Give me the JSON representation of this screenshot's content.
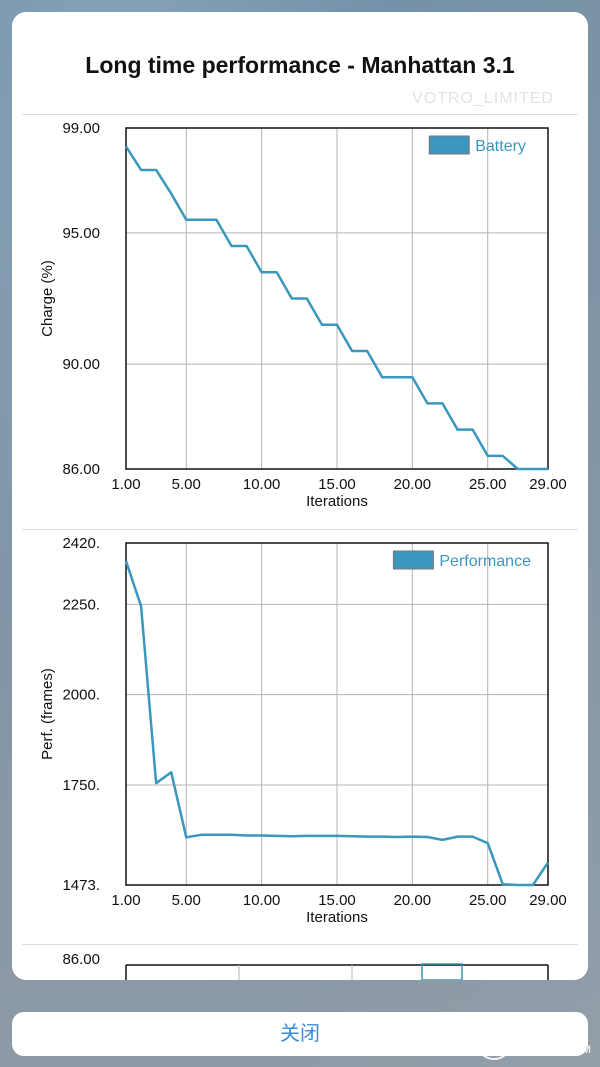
{
  "dialog": {
    "title": "Long time performance - Manhattan 3.1",
    "ghost_text": "VOTRO_LIMITED",
    "cancel_label": "关闭"
  },
  "watermark": {
    "logo": "值",
    "line1": "什么值得买",
    "line2": "SMZDM.COM"
  },
  "colors": {
    "series": "#3a97be",
    "accent": "#3a8dd8"
  },
  "chart_data": [
    {
      "type": "line",
      "xlabel": "Iterations",
      "ylabel": "Charge (%)",
      "legend": "Battery",
      "legend_position": "top-right",
      "xlim": [
        1,
        29
      ],
      "ylim": [
        86,
        99
      ],
      "x_ticks": [
        "1.00",
        "5.00",
        "10.00",
        "15.00",
        "20.00",
        "25.00",
        "29.00"
      ],
      "x_tick_values": [
        1,
        5,
        10,
        15,
        20,
        25,
        29
      ],
      "y_ticks": [
        "99.00",
        "95.00",
        "90.00",
        "86.00"
      ],
      "y_tick_values": [
        99,
        95,
        90,
        86
      ],
      "grid": true,
      "x": [
        1,
        2,
        3,
        4,
        5,
        6,
        7,
        8,
        9,
        10,
        11,
        12,
        13,
        14,
        15,
        16,
        17,
        18,
        19,
        20,
        21,
        22,
        23,
        24,
        25,
        26,
        27,
        28,
        29
      ],
      "values": [
        98.3,
        97.4,
        97.4,
        96.5,
        95.5,
        95.5,
        95.5,
        94.5,
        94.5,
        93.5,
        93.5,
        92.5,
        92.5,
        91.5,
        91.5,
        90.5,
        90.5,
        89.5,
        89.5,
        89.5,
        88.5,
        88.5,
        87.5,
        87.5,
        86.5,
        86.5,
        85.6,
        85.6,
        85.6
      ]
    },
    {
      "type": "line",
      "xlabel": "Iterations",
      "ylabel": "Perf. (frames)",
      "legend": "Performance",
      "legend_position": "top-right",
      "xlim": [
        1,
        29
      ],
      "ylim": [
        1473,
        2420
      ],
      "x_ticks": [
        "1.00",
        "5.00",
        "10.00",
        "15.00",
        "20.00",
        "25.00",
        "29.00"
      ],
      "x_tick_values": [
        1,
        5,
        10,
        15,
        20,
        25,
        29
      ],
      "y_ticks": [
        "2420.",
        "2250.",
        "2000.",
        "1750.",
        "1473."
      ],
      "y_tick_values": [
        2420,
        2250,
        2000,
        1750,
        1473
      ],
      "grid": true,
      "x": [
        1,
        2,
        3,
        4,
        5,
        6,
        7,
        8,
        9,
        10,
        11,
        12,
        13,
        14,
        15,
        16,
        17,
        18,
        19,
        20,
        21,
        22,
        23,
        24,
        25,
        26,
        27,
        28,
        29
      ],
      "values": [
        2370,
        2245,
        1755,
        1785,
        1605,
        1612,
        1612,
        1612,
        1610,
        1610,
        1609,
        1608,
        1609,
        1609,
        1609,
        1608,
        1607,
        1607,
        1606,
        1607,
        1606,
        1598,
        1607,
        1607,
        1589,
        1475,
        1468,
        1470,
        1535
      ]
    },
    {
      "type": "line",
      "y_ticks": [
        "86.00"
      ]
    }
  ]
}
